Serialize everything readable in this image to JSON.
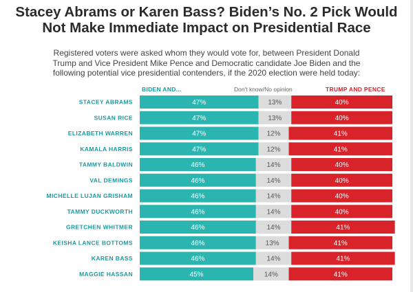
{
  "header": {
    "title_line1": "Stacey Abrams or Karen Bass? Biden’s No. 2 Pick Would",
    "title_line2": "Not Make Immediate Impact on Presidential Race",
    "subtitle_line1": "Registered voters were asked whom they would vote for, between President Donald",
    "subtitle_line2": "Trump and Vice President Mike Pence and Democratic candidate Joe Biden and the",
    "subtitle_line3": "following potential vice presidential contenders, if the 2020 election were held today:"
  },
  "colors": {
    "biden": "#2bb5b0",
    "dont_know": "#dcdcdc",
    "trump": "#d8232a",
    "label": "#1a9aa0"
  },
  "chart_data": {
    "type": "bar",
    "stacked": true,
    "orientation": "horizontal",
    "categories": [
      "STACEY ABRAMS",
      "SUSAN RICE",
      "ELIZABETH WARREN",
      "KAMALA HARRIS",
      "TAMMY BALDWIN",
      "VAL DEMINGS",
      "MICHELLE LUJAN GRISHAM",
      "TAMMY DUCKWORTH",
      "GRETCHEN WHITMER",
      "KEISHA LANCE BOTTOMS",
      "KAREN BASS",
      "MAGGIE HASSAN"
    ],
    "series": [
      {
        "name": "BIDEN AND...",
        "values": [
          47,
          47,
          47,
          47,
          46,
          46,
          46,
          46,
          46,
          46,
          46,
          45
        ]
      },
      {
        "name": "Don't know/No opinion",
        "values": [
          13,
          13,
          12,
          12,
          14,
          14,
          14,
          14,
          14,
          13,
          14,
          14
        ]
      },
      {
        "name": "TRUMP AND PENCE",
        "values": [
          40,
          40,
          41,
          41,
          40,
          40,
          40,
          40,
          41,
          41,
          41,
          41
        ]
      }
    ],
    "value_suffix": "%"
  }
}
